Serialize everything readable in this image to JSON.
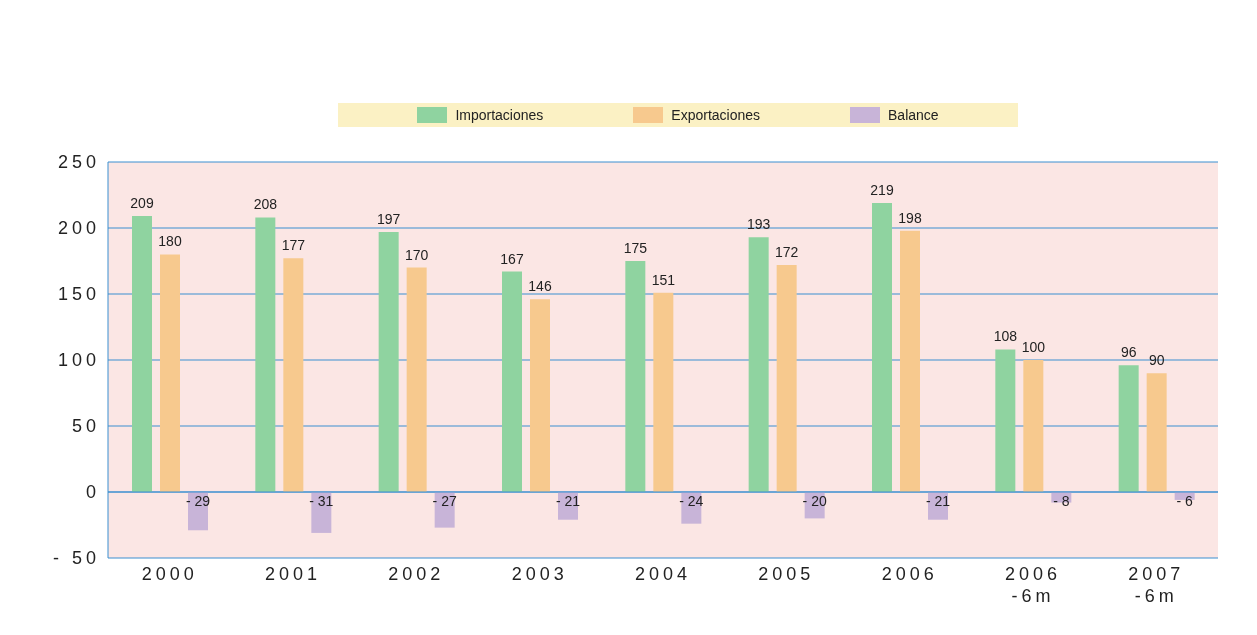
{
  "chart_data": {
    "type": "bar",
    "categories": [
      "2000",
      "2001",
      "2002",
      "2003",
      "2004",
      "2005",
      "2006",
      "2006 -6m",
      "2007 -6m"
    ],
    "series": [
      {
        "name": "Importaciones",
        "color": "#8fd3a0",
        "values": [
          209,
          208,
          197,
          167,
          175,
          193,
          219,
          108,
          96
        ],
        "value_labels": [
          "209",
          "208",
          "197",
          "167",
          "175",
          "193",
          "219",
          "108",
          "96"
        ]
      },
      {
        "name": "Exportaciones",
        "color": "#f7c98e",
        "values": [
          180,
          177,
          170,
          146,
          151,
          172,
          198,
          100,
          90
        ],
        "value_labels": [
          "180",
          "177",
          "170",
          "146",
          "151",
          "172",
          "198",
          "100",
          "90"
        ]
      },
      {
        "name": "Balance",
        "color": "#c8b4d8",
        "values": [
          -29,
          -31,
          -27,
          -21,
          -24,
          -20,
          -21,
          -8,
          -6
        ],
        "value_labels": [
          "- 29",
          "- 31",
          "- 27",
          "- 21",
          "- 24",
          "- 20",
          "- 21",
          "- 8",
          "- 6"
        ]
      }
    ],
    "ylim": [
      -50,
      250
    ],
    "yticks": [
      {
        "value": -50,
        "label": "- 50"
      },
      0,
      50,
      100,
      150,
      200,
      250
    ],
    "grid": "y",
    "legend": "top"
  }
}
